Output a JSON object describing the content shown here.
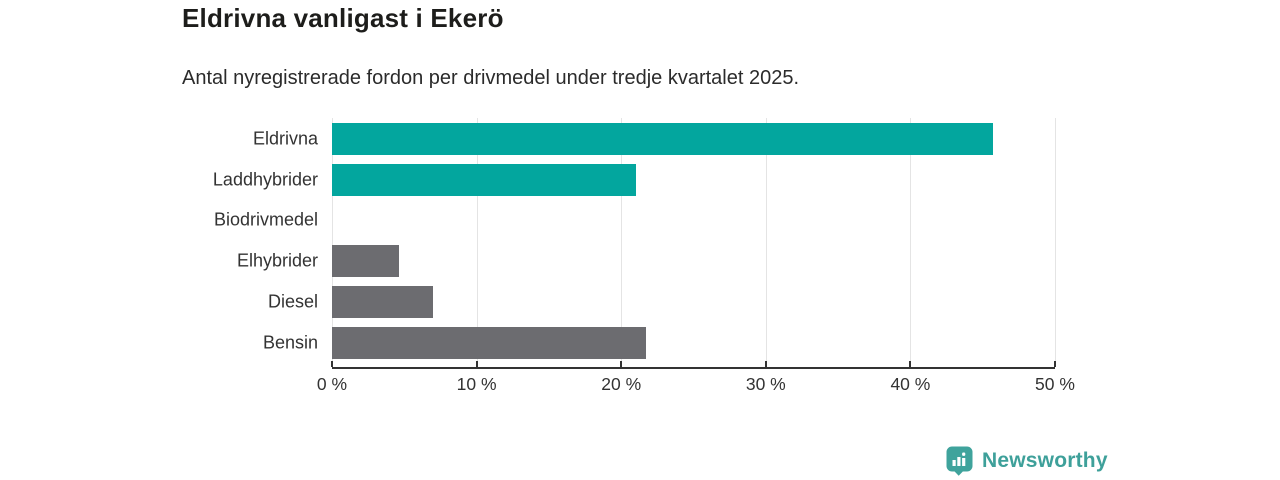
{
  "title": "Eldrivna vanligast i Ekerö",
  "subtitle": "Antal nyregistrerade fordon per drivmedel under tredje kvartalet 2025.",
  "chart_data": {
    "type": "bar",
    "orientation": "horizontal",
    "title": "Eldrivna vanligast i Ekerö",
    "subtitle": "Antal nyregistrerade fordon per drivmedel under tredje kvartalet 2025.",
    "categories": [
      "Eldrivna",
      "Laddhybrider",
      "Biodrivmedel",
      "Elhybrider",
      "Diesel",
      "Bensin"
    ],
    "values": [
      45.7,
      21.0,
      0,
      4.6,
      7.0,
      21.7
    ],
    "unit": "%",
    "xlim": [
      0,
      50
    ],
    "x_ticks": [
      0,
      10,
      20,
      30,
      40,
      50
    ],
    "x_tick_labels": [
      "0 %",
      "10 %",
      "20 %",
      "30 %",
      "40 %",
      "50 %"
    ],
    "bar_colors": [
      "#03a69e",
      "#03a69e",
      "#6c6c70",
      "#6c6c70",
      "#6c6c70",
      "#6c6c70"
    ],
    "grid": "vertical-light",
    "legend": "none"
  },
  "colors": {
    "teal": "#03a69e",
    "gray": "#6c6c70",
    "gridline": "#e4e4e4",
    "axis": "#333333",
    "label_text": "#333333",
    "title_text": "#1d1d1b",
    "brand": "#3ea09a"
  },
  "branding": {
    "name": "Newsworthy",
    "logo_icon": "bar-chart-pin-icon"
  }
}
